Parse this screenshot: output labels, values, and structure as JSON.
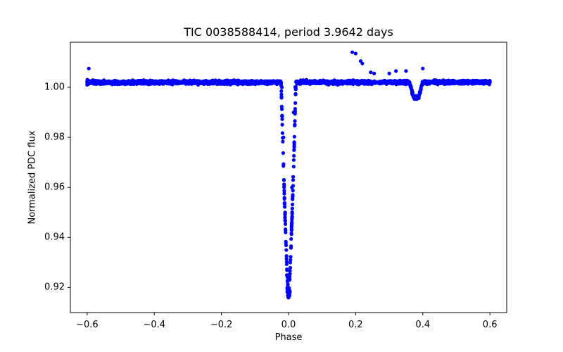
{
  "chart_data": {
    "type": "scatter",
    "title": "TIC 0038588414, period 3.9642 days",
    "xlabel": "Phase",
    "ylabel": "Normalized PDC flux",
    "xlim": [
      -0.65,
      0.65
    ],
    "ylim": [
      0.91,
      1.018
    ],
    "xticks": [
      -0.6,
      -0.4,
      -0.2,
      0.0,
      0.2,
      0.4,
      0.6
    ],
    "xtick_labels": [
      "−0.6",
      "−0.4",
      "−0.2",
      "0.0",
      "0.2",
      "0.4",
      "0.6"
    ],
    "yticks": [
      0.92,
      0.94,
      0.96,
      0.98,
      1.0
    ],
    "ytick_labels": [
      "0.92",
      "0.94",
      "0.96",
      "0.98",
      "1.00"
    ],
    "grid": false,
    "legend": null,
    "marker_color": "#0000ff",
    "series": [
      {
        "name": "phase-folded light curve",
        "description": "Baseline flux ~1.002 across phase -0.6 to 0.6; primary eclipse at phase 0.0 reaching ~0.916; secondary eclipse at phase ~0.38 reaching ~0.996; a few outliers near phase 0.2 up to ~1.014",
        "baseline_flux": 1.002,
        "primary_eclipse": {
          "phase_center": 0.0,
          "min_flux": 0.916,
          "half_width": 0.022
        },
        "secondary_eclipse": {
          "phase_center": 0.38,
          "min_flux": 0.996,
          "half_width": 0.02
        },
        "sample_points": [
          {
            "x": -0.6,
            "y": 1.001
          },
          {
            "x": -0.595,
            "y": 1.0075
          },
          {
            "x": -0.4,
            "y": 1.002
          },
          {
            "x": -0.2,
            "y": 1.002
          },
          {
            "x": -0.02,
            "y": 1.0
          },
          {
            "x": -0.015,
            "y": 0.98
          },
          {
            "x": -0.01,
            "y": 0.95
          },
          {
            "x": -0.005,
            "y": 0.925
          },
          {
            "x": 0.0,
            "y": 0.916
          },
          {
            "x": 0.005,
            "y": 0.93
          },
          {
            "x": 0.01,
            "y": 0.96
          },
          {
            "x": 0.015,
            "y": 0.99
          },
          {
            "x": 0.02,
            "y": 1.0
          },
          {
            "x": 0.19,
            "y": 1.014
          },
          {
            "x": 0.2,
            "y": 1.0135
          },
          {
            "x": 0.215,
            "y": 1.0105
          },
          {
            "x": 0.22,
            "y": 1.0095
          },
          {
            "x": 0.245,
            "y": 1.006
          },
          {
            "x": 0.255,
            "y": 1.0055
          },
          {
            "x": 0.3,
            "y": 1.0055
          },
          {
            "x": 0.32,
            "y": 1.0065
          },
          {
            "x": 0.35,
            "y": 1.0065
          },
          {
            "x": 0.38,
            "y": 0.996
          },
          {
            "x": 0.4,
            "y": 1.0075
          },
          {
            "x": 0.45,
            "y": 1.002
          },
          {
            "x": 0.6,
            "y": 1.002
          }
        ]
      }
    ]
  }
}
